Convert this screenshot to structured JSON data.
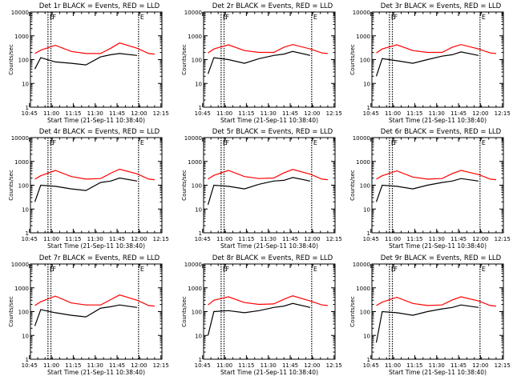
{
  "figure": {
    "xlabel": "Start Time (21-Sep-11 10:38:40)",
    "ylabel": "Counts/sec",
    "xtick_labels": [
      "10:45",
      "11:00",
      "11:15",
      "11:30",
      "11:45",
      "12:00",
      "12:15"
    ],
    "ytick_labels": [
      "1",
      "10",
      "100",
      "1000",
      "10000"
    ],
    "marker_labels": [
      "E",
      "F",
      "E"
    ],
    "colors": {
      "events": "#000000",
      "lld": "#ff0000",
      "background": "#ffffff"
    }
  },
  "chart_data": [
    {
      "type": "line",
      "title": "Det 1r BLACK = Events, RED = LLD",
      "x_unit": "minutes",
      "x": [
        10,
        14,
        24,
        35,
        45,
        55,
        62,
        68,
        80,
        88,
        92
      ],
      "xlim": [
        7,
        97
      ],
      "ylim": [
        1,
        10000
      ],
      "yscale": "log",
      "markers": [
        {
          "x": 19,
          "label": "E"
        },
        {
          "x": 21,
          "label": "F"
        },
        {
          "x": 81,
          "label": "E"
        }
      ],
      "series": [
        {
          "name": "LLD",
          "color": "#ff0000",
          "values": [
            180,
            250,
            400,
            220,
            180,
            180,
            300,
            500,
            300,
            180,
            170
          ]
        },
        {
          "name": "Events",
          "color": "#000000",
          "values": [
            40,
            120,
            80,
            70,
            60,
            130,
            160,
            180,
            150,
            null,
            150
          ]
        }
      ]
    },
    {
      "type": "line",
      "title": "Det 2r BLACK = Events, RED = LLD",
      "x_unit": "minutes",
      "x": [
        10,
        14,
        24,
        35,
        45,
        55,
        62,
        68,
        80,
        88,
        92
      ],
      "xlim": [
        7,
        97
      ],
      "ylim": [
        1,
        10000
      ],
      "yscale": "log",
      "markers": [
        {
          "x": 19,
          "label": "E"
        },
        {
          "x": 21,
          "label": "F"
        },
        {
          "x": 81,
          "label": "E"
        }
      ],
      "series": [
        {
          "name": "LLD",
          "color": "#ff0000",
          "values": [
            190,
            280,
            420,
            240,
            200,
            200,
            330,
            430,
            280,
            190,
            180
          ]
        },
        {
          "name": "Events",
          "color": "#000000",
          "values": [
            25,
            120,
            100,
            70,
            110,
            150,
            170,
            220,
            150,
            null,
            170
          ]
        }
      ]
    },
    {
      "type": "line",
      "title": "Det 3r BLACK = Events, RED = LLD",
      "x_unit": "minutes",
      "x": [
        10,
        14,
        24,
        35,
        45,
        55,
        62,
        68,
        80,
        88,
        92
      ],
      "xlim": [
        7,
        97
      ],
      "ylim": [
        1,
        10000
      ],
      "yscale": "log",
      "markers": [
        {
          "x": 19,
          "label": "E"
        },
        {
          "x": 21,
          "label": "F"
        },
        {
          "x": 81,
          "label": "E"
        }
      ],
      "series": [
        {
          "name": "LLD",
          "color": "#ff0000",
          "values": [
            190,
            280,
            420,
            240,
            200,
            200,
            330,
            430,
            280,
            190,
            180
          ]
        },
        {
          "name": "Events",
          "color": "#000000",
          "values": [
            20,
            110,
            90,
            70,
            100,
            140,
            160,
            210,
            150,
            null,
            160
          ]
        }
      ]
    },
    {
      "type": "line",
      "title": "Det 4r BLACK = Events, RED = LLD",
      "x_unit": "minutes",
      "x": [
        10,
        14,
        24,
        35,
        45,
        55,
        62,
        68,
        80,
        88,
        92
      ],
      "xlim": [
        7,
        97
      ],
      "ylim": [
        1,
        10000
      ],
      "yscale": "log",
      "markers": [
        {
          "x": 19,
          "label": "E"
        },
        {
          "x": 21,
          "label": "F"
        },
        {
          "x": 81,
          "label": "E"
        }
      ],
      "series": [
        {
          "name": "LLD",
          "color": "#ff0000",
          "values": [
            180,
            250,
            420,
            230,
            180,
            190,
            320,
            470,
            300,
            180,
            170
          ]
        },
        {
          "name": "Events",
          "color": "#000000",
          "values": [
            20,
            100,
            90,
            70,
            60,
            130,
            150,
            200,
            150,
            null,
            160
          ]
        }
      ]
    },
    {
      "type": "line",
      "title": "Det 5r BLACK = Events, RED = LLD",
      "x_unit": "minutes",
      "x": [
        10,
        14,
        24,
        35,
        45,
        55,
        62,
        68,
        80,
        88,
        92
      ],
      "xlim": [
        7,
        97
      ],
      "ylim": [
        1,
        10000
      ],
      "yscale": "log",
      "markers": [
        {
          "x": 19,
          "label": "E"
        },
        {
          "x": 21,
          "label": "F"
        },
        {
          "x": 81,
          "label": "E"
        }
      ],
      "series": [
        {
          "name": "LLD",
          "color": "#ff0000",
          "values": [
            180,
            260,
            420,
            230,
            190,
            200,
            330,
            460,
            290,
            180,
            170
          ]
        },
        {
          "name": "Events",
          "color": "#000000",
          "values": [
            15,
            100,
            90,
            70,
            110,
            150,
            160,
            210,
            150,
            null,
            160
          ]
        }
      ]
    },
    {
      "type": "line",
      "title": "Det 6r BLACK = Events, RED = LLD",
      "x_unit": "minutes",
      "x": [
        10,
        14,
        24,
        35,
        45,
        55,
        62,
        68,
        80,
        88,
        92
      ],
      "xlim": [
        7,
        97
      ],
      "ylim": [
        1,
        10000
      ],
      "yscale": "log",
      "markers": [
        {
          "x": 19,
          "label": "E"
        },
        {
          "x": 21,
          "label": "F"
        },
        {
          "x": 81,
          "label": "E"
        }
      ],
      "series": [
        {
          "name": "LLD",
          "color": "#ff0000",
          "values": [
            180,
            250,
            400,
            220,
            180,
            190,
            310,
            420,
            280,
            180,
            170
          ]
        },
        {
          "name": "Events",
          "color": "#000000",
          "values": [
            20,
            100,
            90,
            70,
            100,
            130,
            150,
            190,
            150,
            null,
            160
          ]
        }
      ]
    },
    {
      "type": "line",
      "title": "Det 7r BLACK = Events, RED = LLD",
      "x_unit": "minutes",
      "x": [
        10,
        14,
        24,
        35,
        45,
        55,
        62,
        68,
        80,
        88,
        92
      ],
      "xlim": [
        7,
        97
      ],
      "ylim": [
        1,
        10000
      ],
      "yscale": "log",
      "markers": [
        {
          "x": 19,
          "label": "E"
        },
        {
          "x": 21,
          "label": "F"
        },
        {
          "x": 81,
          "label": "E"
        }
      ],
      "series": [
        {
          "name": "LLD",
          "color": "#ff0000",
          "values": [
            180,
            260,
            450,
            230,
            190,
            190,
            320,
            500,
            300,
            180,
            170
          ]
        },
        {
          "name": "Events",
          "color": "#000000",
          "values": [
            25,
            120,
            90,
            70,
            60,
            140,
            160,
            190,
            150,
            null,
            160
          ]
        }
      ]
    },
    {
      "type": "line",
      "title": "Det 8r BLACK = Events, RED = LLD",
      "x_unit": "minutes",
      "x": [
        10,
        14,
        24,
        35,
        45,
        55,
        62,
        68,
        80,
        88,
        92
      ],
      "xlim": [
        7,
        97
      ],
      "ylim": [
        1,
        10000
      ],
      "yscale": "log",
      "markers": [
        {
          "x": 19,
          "label": "E"
        },
        {
          "x": 21,
          "label": "F"
        },
        {
          "x": 81,
          "label": "E"
        }
      ],
      "series": [
        {
          "name": "LLD",
          "color": "#ff0000",
          "values": [
            190,
            300,
            420,
            240,
            200,
            210,
            330,
            460,
            280,
            190,
            180
          ]
        },
        {
          "name": "Events",
          "color": "#000000",
          "values": [
            10,
            100,
            110,
            90,
            110,
            150,
            170,
            220,
            150,
            null,
            170
          ]
        }
      ]
    },
    {
      "type": "line",
      "title": "Det 9r BLACK = Events, RED = LLD",
      "x_unit": "minutes",
      "x": [
        10,
        14,
        24,
        35,
        45,
        55,
        62,
        68,
        80,
        88,
        92
      ],
      "xlim": [
        7,
        97
      ],
      "ylim": [
        1,
        10000
      ],
      "yscale": "log",
      "markers": [
        {
          "x": 19,
          "label": "E"
        },
        {
          "x": 21,
          "label": "F"
        },
        {
          "x": 81,
          "label": "E"
        }
      ],
      "series": [
        {
          "name": "LLD",
          "color": "#ff0000",
          "values": [
            180,
            250,
            400,
            220,
            180,
            190,
            310,
            420,
            280,
            180,
            170
          ]
        },
        {
          "name": "Events",
          "color": "#000000",
          "values": [
            5,
            100,
            90,
            70,
            100,
            130,
            150,
            190,
            150,
            null,
            160
          ]
        }
      ]
    }
  ]
}
